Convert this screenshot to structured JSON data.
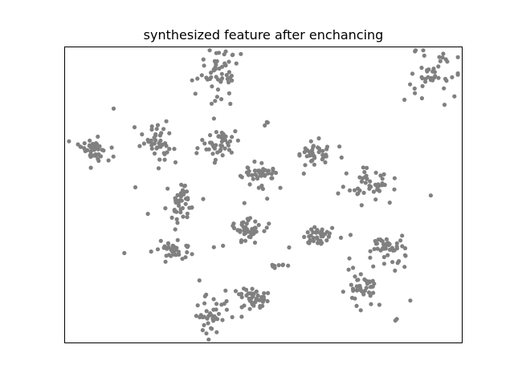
{
  "figure": {
    "background": "#ffffff"
  },
  "chart_data": {
    "type": "scatter",
    "title": "synthesized feature after enchancing",
    "xlabel": "",
    "ylabel": "",
    "xticks": [],
    "yticks": [],
    "grid": false,
    "legend": "none",
    "marker_color": "#808080",
    "xlim": [
      0,
      100
    ],
    "ylim": [
      0,
      100
    ],
    "clusters": [
      {
        "center": [
          38.5,
          91.5
        ],
        "spread": [
          2.5,
          4.0
        ],
        "n": 55
      },
      {
        "center": [
          92.5,
          90.5
        ],
        "spread": [
          2.8,
          3.2
        ],
        "n": 45
      },
      {
        "center": [
          7.0,
          65.5
        ],
        "spread": [
          1.8,
          2.3
        ],
        "n": 45
      },
      {
        "center": [
          23.5,
          68.0
        ],
        "spread": [
          2.0,
          2.5
        ],
        "n": 45
      },
      {
        "center": [
          38.5,
          67.5
        ],
        "spread": [
          2.0,
          2.5
        ],
        "n": 45
      },
      {
        "center": [
          48.5,
          56.5
        ],
        "spread": [
          2.0,
          2.5
        ],
        "n": 45
      },
      {
        "center": [
          62.5,
          63.5
        ],
        "spread": [
          2.2,
          2.2
        ],
        "n": 40
      },
      {
        "center": [
          76.5,
          54.0
        ],
        "spread": [
          3.0,
          2.5
        ],
        "n": 45
      },
      {
        "center": [
          29.0,
          47.0
        ],
        "spread": [
          1.8,
          2.5
        ],
        "n": 45
      },
      {
        "center": [
          27.0,
          32.0
        ],
        "spread": [
          3.0,
          2.0
        ],
        "n": 40
      },
      {
        "center": [
          45.0,
          38.0
        ],
        "spread": [
          2.5,
          2.0
        ],
        "n": 45
      },
      {
        "center": [
          64.0,
          36.0
        ],
        "spread": [
          2.0,
          1.8
        ],
        "n": 40
      },
      {
        "center": [
          80.5,
          32.5
        ],
        "spread": [
          2.5,
          2.0
        ],
        "n": 45
      },
      {
        "center": [
          75.5,
          18.0
        ],
        "spread": [
          3.0,
          2.5
        ],
        "n": 45
      },
      {
        "center": [
          47.5,
          15.0
        ],
        "spread": [
          2.0,
          2.0
        ],
        "n": 45
      },
      {
        "center": [
          36.5,
          8.5
        ],
        "spread": [
          2.0,
          2.5
        ],
        "n": 40
      },
      {
        "center": [
          53.5,
          26.0
        ],
        "spread": [
          1.2,
          0.5
        ],
        "n": 8
      },
      {
        "center": [
          51.0,
          74.5
        ],
        "spread": [
          0.6,
          0.4
        ],
        "n": 3
      }
    ]
  }
}
